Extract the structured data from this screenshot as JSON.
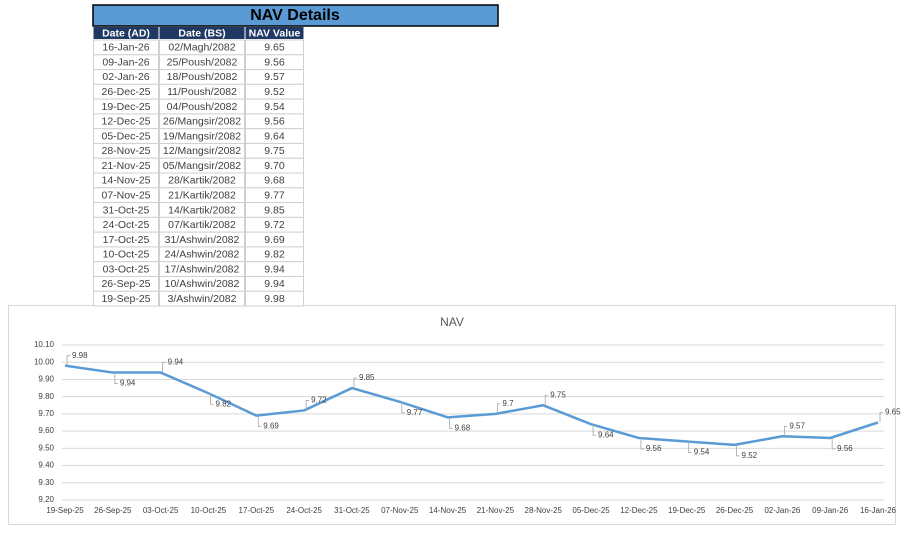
{
  "table": {
    "title": "NAV Details",
    "columns": [
      "Date (AD)",
      "Date (BS)",
      "NAV Value"
    ],
    "rows": [
      [
        "16-Jan-26",
        "02/Magh/2082",
        "9.65"
      ],
      [
        "09-Jan-26",
        "25/Poush/2082",
        "9.56"
      ],
      [
        "02-Jan-26",
        "18/Poush/2082",
        "9.57"
      ],
      [
        "26-Dec-25",
        "11/Poush/2082",
        "9.52"
      ],
      [
        "19-Dec-25",
        "04/Poush/2082",
        "9.54"
      ],
      [
        "12-Dec-25",
        "26/Mangsir/2082",
        "9.56"
      ],
      [
        "05-Dec-25",
        "19/Mangsir/2082",
        "9.64"
      ],
      [
        "28-Nov-25",
        "12/Mangsir/2082",
        "9.75"
      ],
      [
        "21-Nov-25",
        "05/Mangsir/2082",
        "9.70"
      ],
      [
        "14-Nov-25",
        "28/Kartik/2082",
        "9.68"
      ],
      [
        "07-Nov-25",
        "21/Kartik/2082",
        "9.77"
      ],
      [
        "31-Oct-25",
        "14/Kartik/2082",
        "9.85"
      ],
      [
        "24-Oct-25",
        "07/Kartik/2082",
        "9.72"
      ],
      [
        "17-Oct-25",
        "31/Ashwin/2082",
        "9.69"
      ],
      [
        "10-Oct-25",
        "24/Ashwin/2082",
        "9.82"
      ],
      [
        "03-Oct-25",
        "17/Ashwin/2082",
        "9.94"
      ],
      [
        "26-Sep-25",
        "10/Ashwin/2082",
        "9.94"
      ],
      [
        "19-Sep-25",
        "3/Ashwin/2082",
        "9.98"
      ]
    ]
  },
  "chart_data": {
    "type": "line",
    "title": "NAV",
    "categories": [
      "19-Sep-25",
      "26-Sep-25",
      "03-Oct-25",
      "10-Oct-25",
      "17-Oct-25",
      "24-Oct-25",
      "31-Oct-25",
      "07-Nov-25",
      "14-Nov-25",
      "21-Nov-25",
      "28-Nov-25",
      "05-Dec-25",
      "12-Dec-25",
      "19-Dec-25",
      "26-Dec-25",
      "02-Jan-26",
      "09-Jan-26",
      "16-Jan-26"
    ],
    "values": [
      9.98,
      9.94,
      9.94,
      9.82,
      9.69,
      9.72,
      9.85,
      9.77,
      9.68,
      9.7,
      9.75,
      9.64,
      9.56,
      9.54,
      9.52,
      9.57,
      9.56,
      9.65
    ],
    "color": "#5b9bd5",
    "ylim": [
      9.2,
      10.1
    ],
    "yticks": [
      {
        "value": 9.2,
        "label": "9.20"
      },
      {
        "value": 9.3,
        "label": "9.30"
      },
      {
        "value": 9.4,
        "label": "9.40"
      },
      {
        "value": 9.5,
        "label": "9.50"
      },
      {
        "value": 9.6,
        "label": "9.60"
      },
      {
        "value": 9.7,
        "label": "9.70"
      },
      {
        "value": 9.8,
        "label": "9.80"
      },
      {
        "value": 9.9,
        "label": "9.90"
      },
      {
        "value": 10.0,
        "label": "10.00"
      },
      {
        "value": 10.1,
        "label": "10.10"
      }
    ],
    "grid": true
  }
}
